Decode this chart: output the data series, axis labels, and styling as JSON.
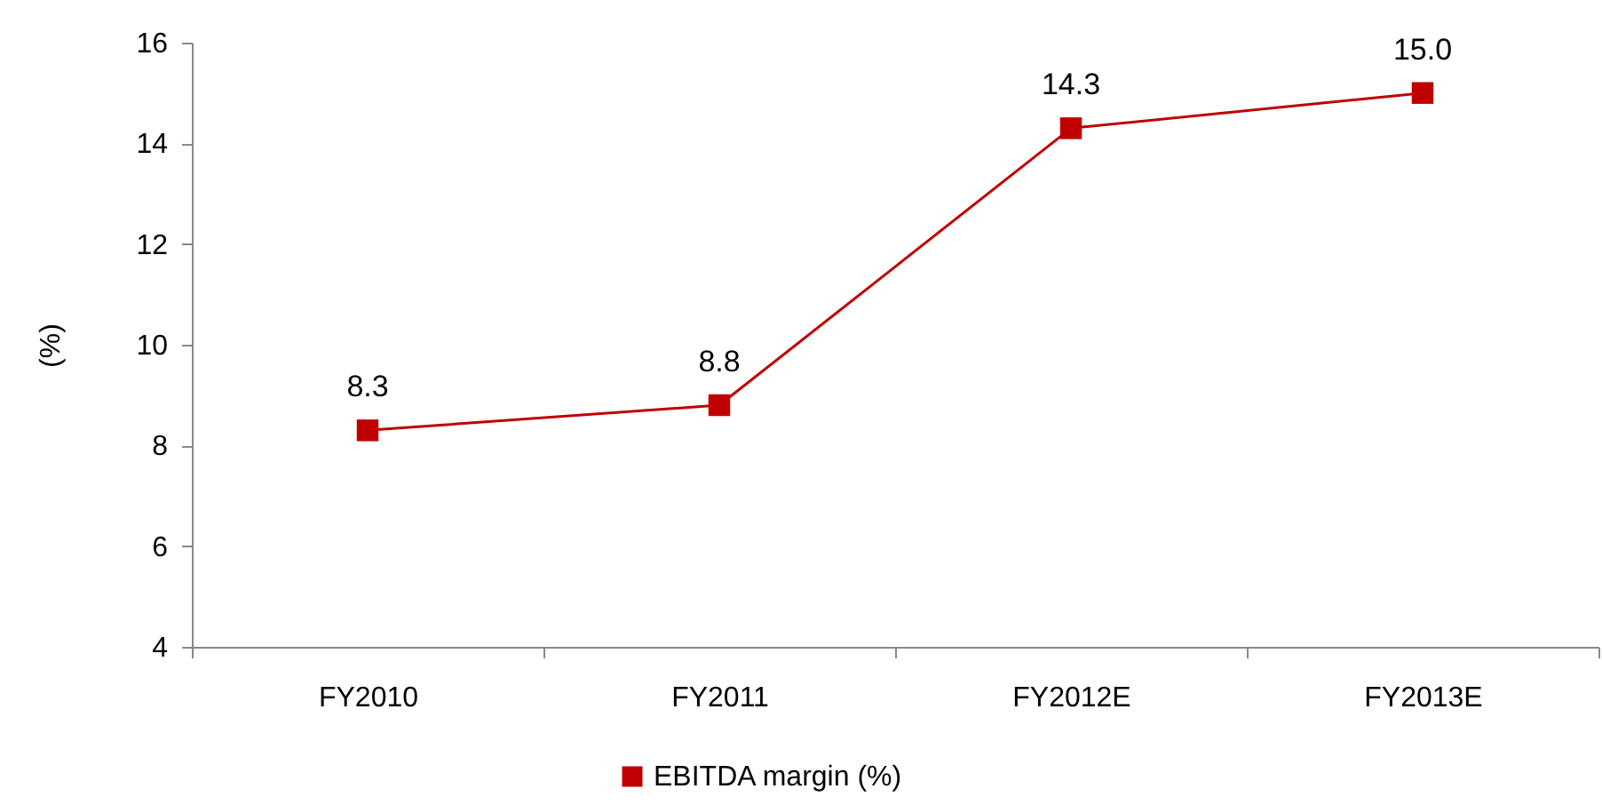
{
  "chart_data": {
    "type": "line",
    "ylabel": "(%)",
    "categories": [
      "FY2010",
      "FY2011",
      "FY2012E",
      "FY2013E"
    ],
    "series": [
      {
        "name": "EBITDA margin (%)",
        "color": "#c00000",
        "values": [
          8.3,
          8.8,
          14.3,
          15
        ],
        "value_labels": [
          "8.3",
          "8.8",
          "14.3",
          "15.0"
        ]
      }
    ],
    "ylim": [
      4,
      16
    ],
    "yticks": [
      4,
      6,
      8,
      10,
      12,
      14,
      16
    ],
    "grid": false,
    "legend": "bottom",
    "marker": "square",
    "line_style": "solid"
  }
}
